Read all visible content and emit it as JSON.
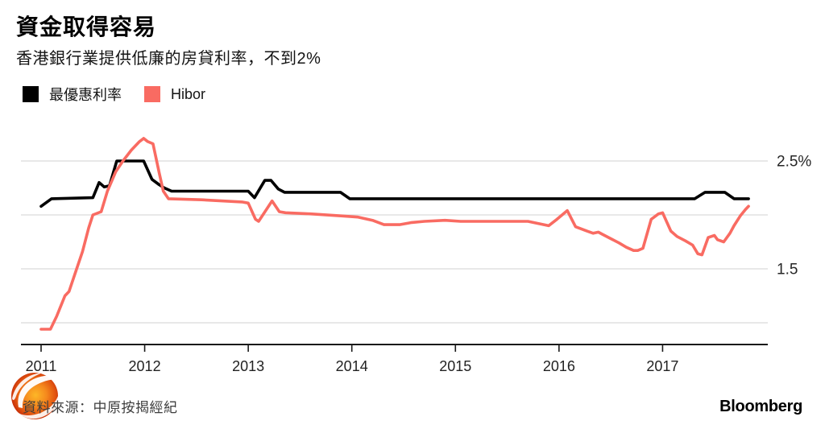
{
  "header": {
    "title": "資金取得容易",
    "subtitle": "香港銀行業提供低廉的房貸利率，不到2%"
  },
  "legend": [
    {
      "label": "最優惠利率",
      "color": "#000000"
    },
    {
      "label": "Hibor",
      "color": "#f96b62"
    }
  ],
  "chart_data": {
    "type": "line",
    "title": "資金取得容易",
    "subtitle": "香港銀行業提供低廉的房貸利率，不到2%",
    "xlabel": "",
    "ylabel": "",
    "unit": "%",
    "grid": true,
    "legend_position": "top-left",
    "x_domain": [
      2011.0,
      2017.83
    ],
    "ylim": [
      0.8,
      2.85
    ],
    "x_ticks": [
      2011,
      2012,
      2013,
      2014,
      2015,
      2016,
      2017
    ],
    "y_gridline_values": [
      2.5,
      2.0,
      1.5,
      1.0
    ],
    "y_tick_labels": [
      {
        "label": "2.5%",
        "value": 2.5
      },
      {
        "label": "1.5",
        "value": 1.5
      }
    ],
    "series": [
      {
        "name": "最優惠利率",
        "color": "#000000",
        "points": [
          [
            2011.0,
            2.08
          ],
          [
            2011.1,
            2.15
          ],
          [
            2011.5,
            2.16
          ],
          [
            2011.56,
            2.3
          ],
          [
            2011.61,
            2.26
          ],
          [
            2011.66,
            2.27
          ],
          [
            2011.73,
            2.5
          ],
          [
            2011.99,
            2.5
          ],
          [
            2012.07,
            2.33
          ],
          [
            2012.14,
            2.28
          ],
          [
            2012.19,
            2.25
          ],
          [
            2012.26,
            2.22
          ],
          [
            2013.0,
            2.22
          ],
          [
            2013.06,
            2.16
          ],
          [
            2013.16,
            2.32
          ],
          [
            2013.22,
            2.32
          ],
          [
            2013.29,
            2.24
          ],
          [
            2013.35,
            2.21
          ],
          [
            2013.89,
            2.21
          ],
          [
            2013.98,
            2.15
          ],
          [
            2017.31,
            2.15
          ],
          [
            2017.41,
            2.21
          ],
          [
            2017.6,
            2.21
          ],
          [
            2017.69,
            2.15
          ],
          [
            2017.83,
            2.15
          ]
        ]
      },
      {
        "name": "Hibor",
        "color": "#f96b62",
        "points": [
          [
            2011.0,
            0.94
          ],
          [
            2011.09,
            0.94
          ],
          [
            2011.15,
            1.06
          ],
          [
            2011.23,
            1.25
          ],
          [
            2011.27,
            1.29
          ],
          [
            2011.34,
            1.49
          ],
          [
            2011.4,
            1.66
          ],
          [
            2011.46,
            1.88
          ],
          [
            2011.5,
            2.0
          ],
          [
            2011.58,
            2.03
          ],
          [
            2011.64,
            2.22
          ],
          [
            2011.72,
            2.4
          ],
          [
            2011.79,
            2.5
          ],
          [
            2011.87,
            2.6
          ],
          [
            2011.95,
            2.68
          ],
          [
            2011.99,
            2.71
          ],
          [
            2012.03,
            2.68
          ],
          [
            2012.08,
            2.66
          ],
          [
            2012.14,
            2.39
          ],
          [
            2012.18,
            2.22
          ],
          [
            2012.23,
            2.15
          ],
          [
            2012.55,
            2.14
          ],
          [
            2012.94,
            2.12
          ],
          [
            2013.0,
            2.11
          ],
          [
            2013.07,
            1.96
          ],
          [
            2013.1,
            1.94
          ],
          [
            2013.23,
            2.13
          ],
          [
            2013.3,
            2.03
          ],
          [
            2013.36,
            2.02
          ],
          [
            2013.6,
            2.01
          ],
          [
            2013.91,
            1.99
          ],
          [
            2014.06,
            1.98
          ],
          [
            2014.2,
            1.95
          ],
          [
            2014.31,
            1.91
          ],
          [
            2014.46,
            1.91
          ],
          [
            2014.58,
            1.93
          ],
          [
            2014.7,
            1.94
          ],
          [
            2014.9,
            1.95
          ],
          [
            2015.05,
            1.94
          ],
          [
            2015.45,
            1.94
          ],
          [
            2015.7,
            1.94
          ],
          [
            2015.9,
            1.9
          ],
          [
            2015.98,
            1.96
          ],
          [
            2016.08,
            2.04
          ],
          [
            2016.16,
            1.89
          ],
          [
            2016.27,
            1.85
          ],
          [
            2016.33,
            1.83
          ],
          [
            2016.38,
            1.84
          ],
          [
            2016.42,
            1.82
          ],
          [
            2016.5,
            1.78
          ],
          [
            2016.58,
            1.74
          ],
          [
            2016.65,
            1.7
          ],
          [
            2016.72,
            1.67
          ],
          [
            2016.76,
            1.67
          ],
          [
            2016.81,
            1.69
          ],
          [
            2016.89,
            1.96
          ],
          [
            2016.96,
            2.01
          ],
          [
            2017.0,
            2.02
          ],
          [
            2017.08,
            1.85
          ],
          [
            2017.14,
            1.8
          ],
          [
            2017.22,
            1.76
          ],
          [
            2017.29,
            1.72
          ],
          [
            2017.34,
            1.64
          ],
          [
            2017.38,
            1.63
          ],
          [
            2017.44,
            1.79
          ],
          [
            2017.5,
            1.81
          ],
          [
            2017.53,
            1.77
          ],
          [
            2017.59,
            1.75
          ],
          [
            2017.65,
            1.83
          ],
          [
            2017.69,
            1.9
          ],
          [
            2017.75,
            1.99
          ],
          [
            2017.8,
            2.05
          ],
          [
            2017.83,
            2.08
          ]
        ]
      }
    ]
  },
  "footer": {
    "source": "資料來源：中原按揭經紀",
    "brand": "Bloomberg"
  },
  "watermark": {
    "name": "orange-flame-logo"
  }
}
